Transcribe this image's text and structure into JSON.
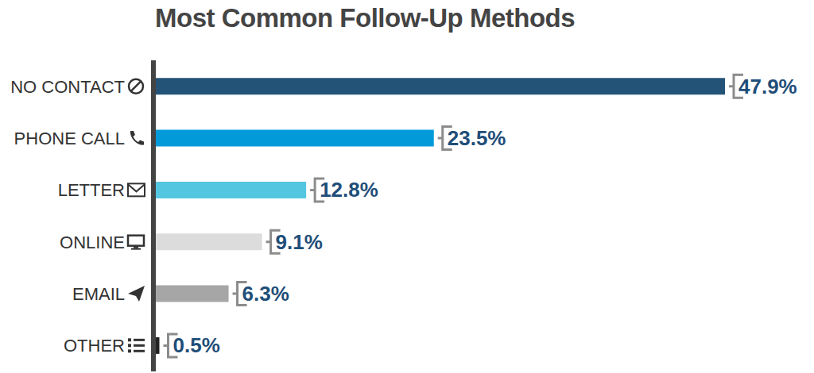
{
  "chart_data": {
    "type": "bar",
    "title": "Most Common Follow-Up Methods",
    "orientation": "horizontal",
    "categories": [
      "NO CONTACT",
      "PHONE CALL",
      "LETTER",
      "ONLINE",
      "EMAIL",
      "OTHER"
    ],
    "values": [
      47.9,
      23.5,
      12.8,
      9.1,
      6.3,
      0.5
    ],
    "value_labels": [
      "47.9%",
      "23.5%",
      "12.8%",
      "9.1%",
      "6.3%",
      "0.5%"
    ],
    "colors": [
      "#245378",
      "#039ada",
      "#55c6e0",
      "#dcdcdc",
      "#a6a6a6",
      "#222222"
    ],
    "data_labels": true,
    "tick_labels": "y",
    "grid": false
  }
}
